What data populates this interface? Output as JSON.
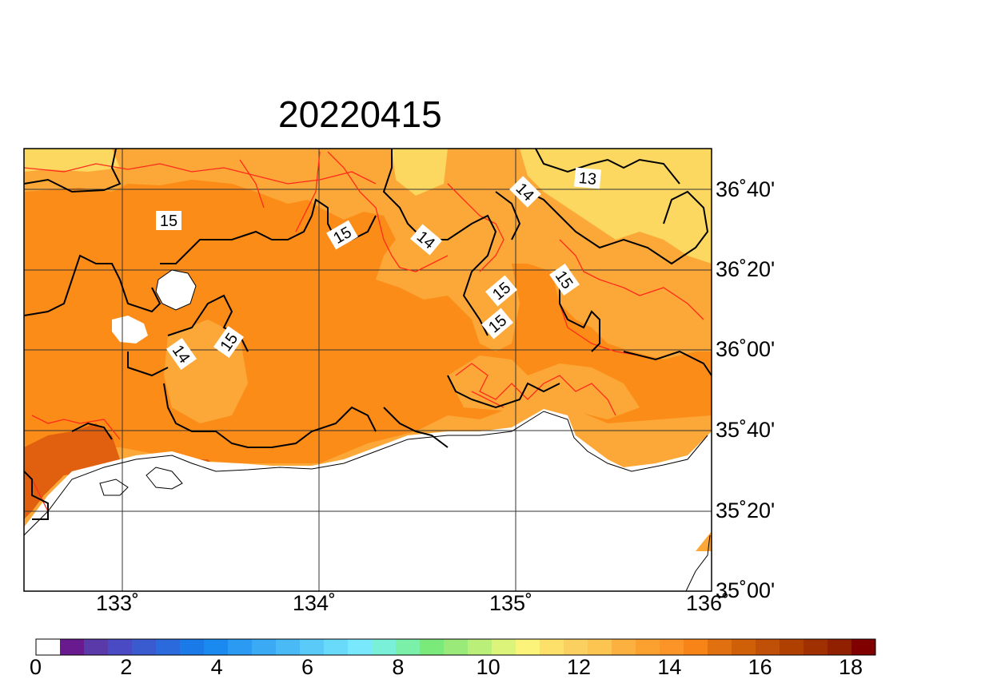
{
  "title": "20220415",
  "lat_labels": [
    "36˚40'",
    "36˚20'",
    "36˚00'",
    "35˚40'",
    "35˚20'",
    "35˚00'"
  ],
  "lon_labels": [
    "133˚",
    "134˚",
    "135˚",
    "136˚"
  ],
  "contour_labels": [
    "15",
    "15",
    "14",
    "14",
    "15",
    "15",
    "15",
    "15",
    "14",
    "13"
  ],
  "colorbar": {
    "tick_labels": [
      "0",
      "2",
      "4",
      "6",
      "8",
      "10",
      "12",
      "14",
      "16",
      "18"
    ],
    "colors": [
      "#ffffff",
      "#6a1a8f",
      "#5a3aa8",
      "#4a4ac4",
      "#3a5ad0",
      "#2a6adc",
      "#1a7ae8",
      "#1a8af0",
      "#2a9af2",
      "#3aaaf4",
      "#4abaf6",
      "#5acaf8",
      "#6adafa",
      "#7ae8fc",
      "#7af0d8",
      "#7af0a8",
      "#7aea7a",
      "#9aea7a",
      "#baf07a",
      "#dcf47a",
      "#fcf47a",
      "#fce06a",
      "#fcd060",
      "#fcc450",
      "#fcb040",
      "#fca030",
      "#fc9428",
      "#f88418",
      "#e07010",
      "#d06008",
      "#c05008",
      "#b04000",
      "#a03000",
      "#902000",
      "#800000"
    ],
    "min": 0,
    "max": 18
  },
  "map_colors": {
    "ocean": "#ffffff",
    "level_13": "#fcd860",
    "level_14": "#fca838",
    "level_15": "#fc8c18",
    "level_16": "#e06010",
    "contour_major": "#000000",
    "contour_minor": "#ff2a1a"
  },
  "chart_data": {
    "type": "heatmap",
    "title": "20220415",
    "lon_range": [
      132.5,
      136.0
    ],
    "lat_range": [
      35.0,
      36.8333
    ],
    "lon_ticks": [
      133,
      134,
      135,
      136
    ],
    "lat_ticks": [
      35.0,
      35.3333,
      35.6667,
      36.0,
      36.3333,
      36.6667
    ],
    "value_range": [
      0,
      18
    ],
    "contour_levels": [
      13,
      14,
      15
    ]
  }
}
